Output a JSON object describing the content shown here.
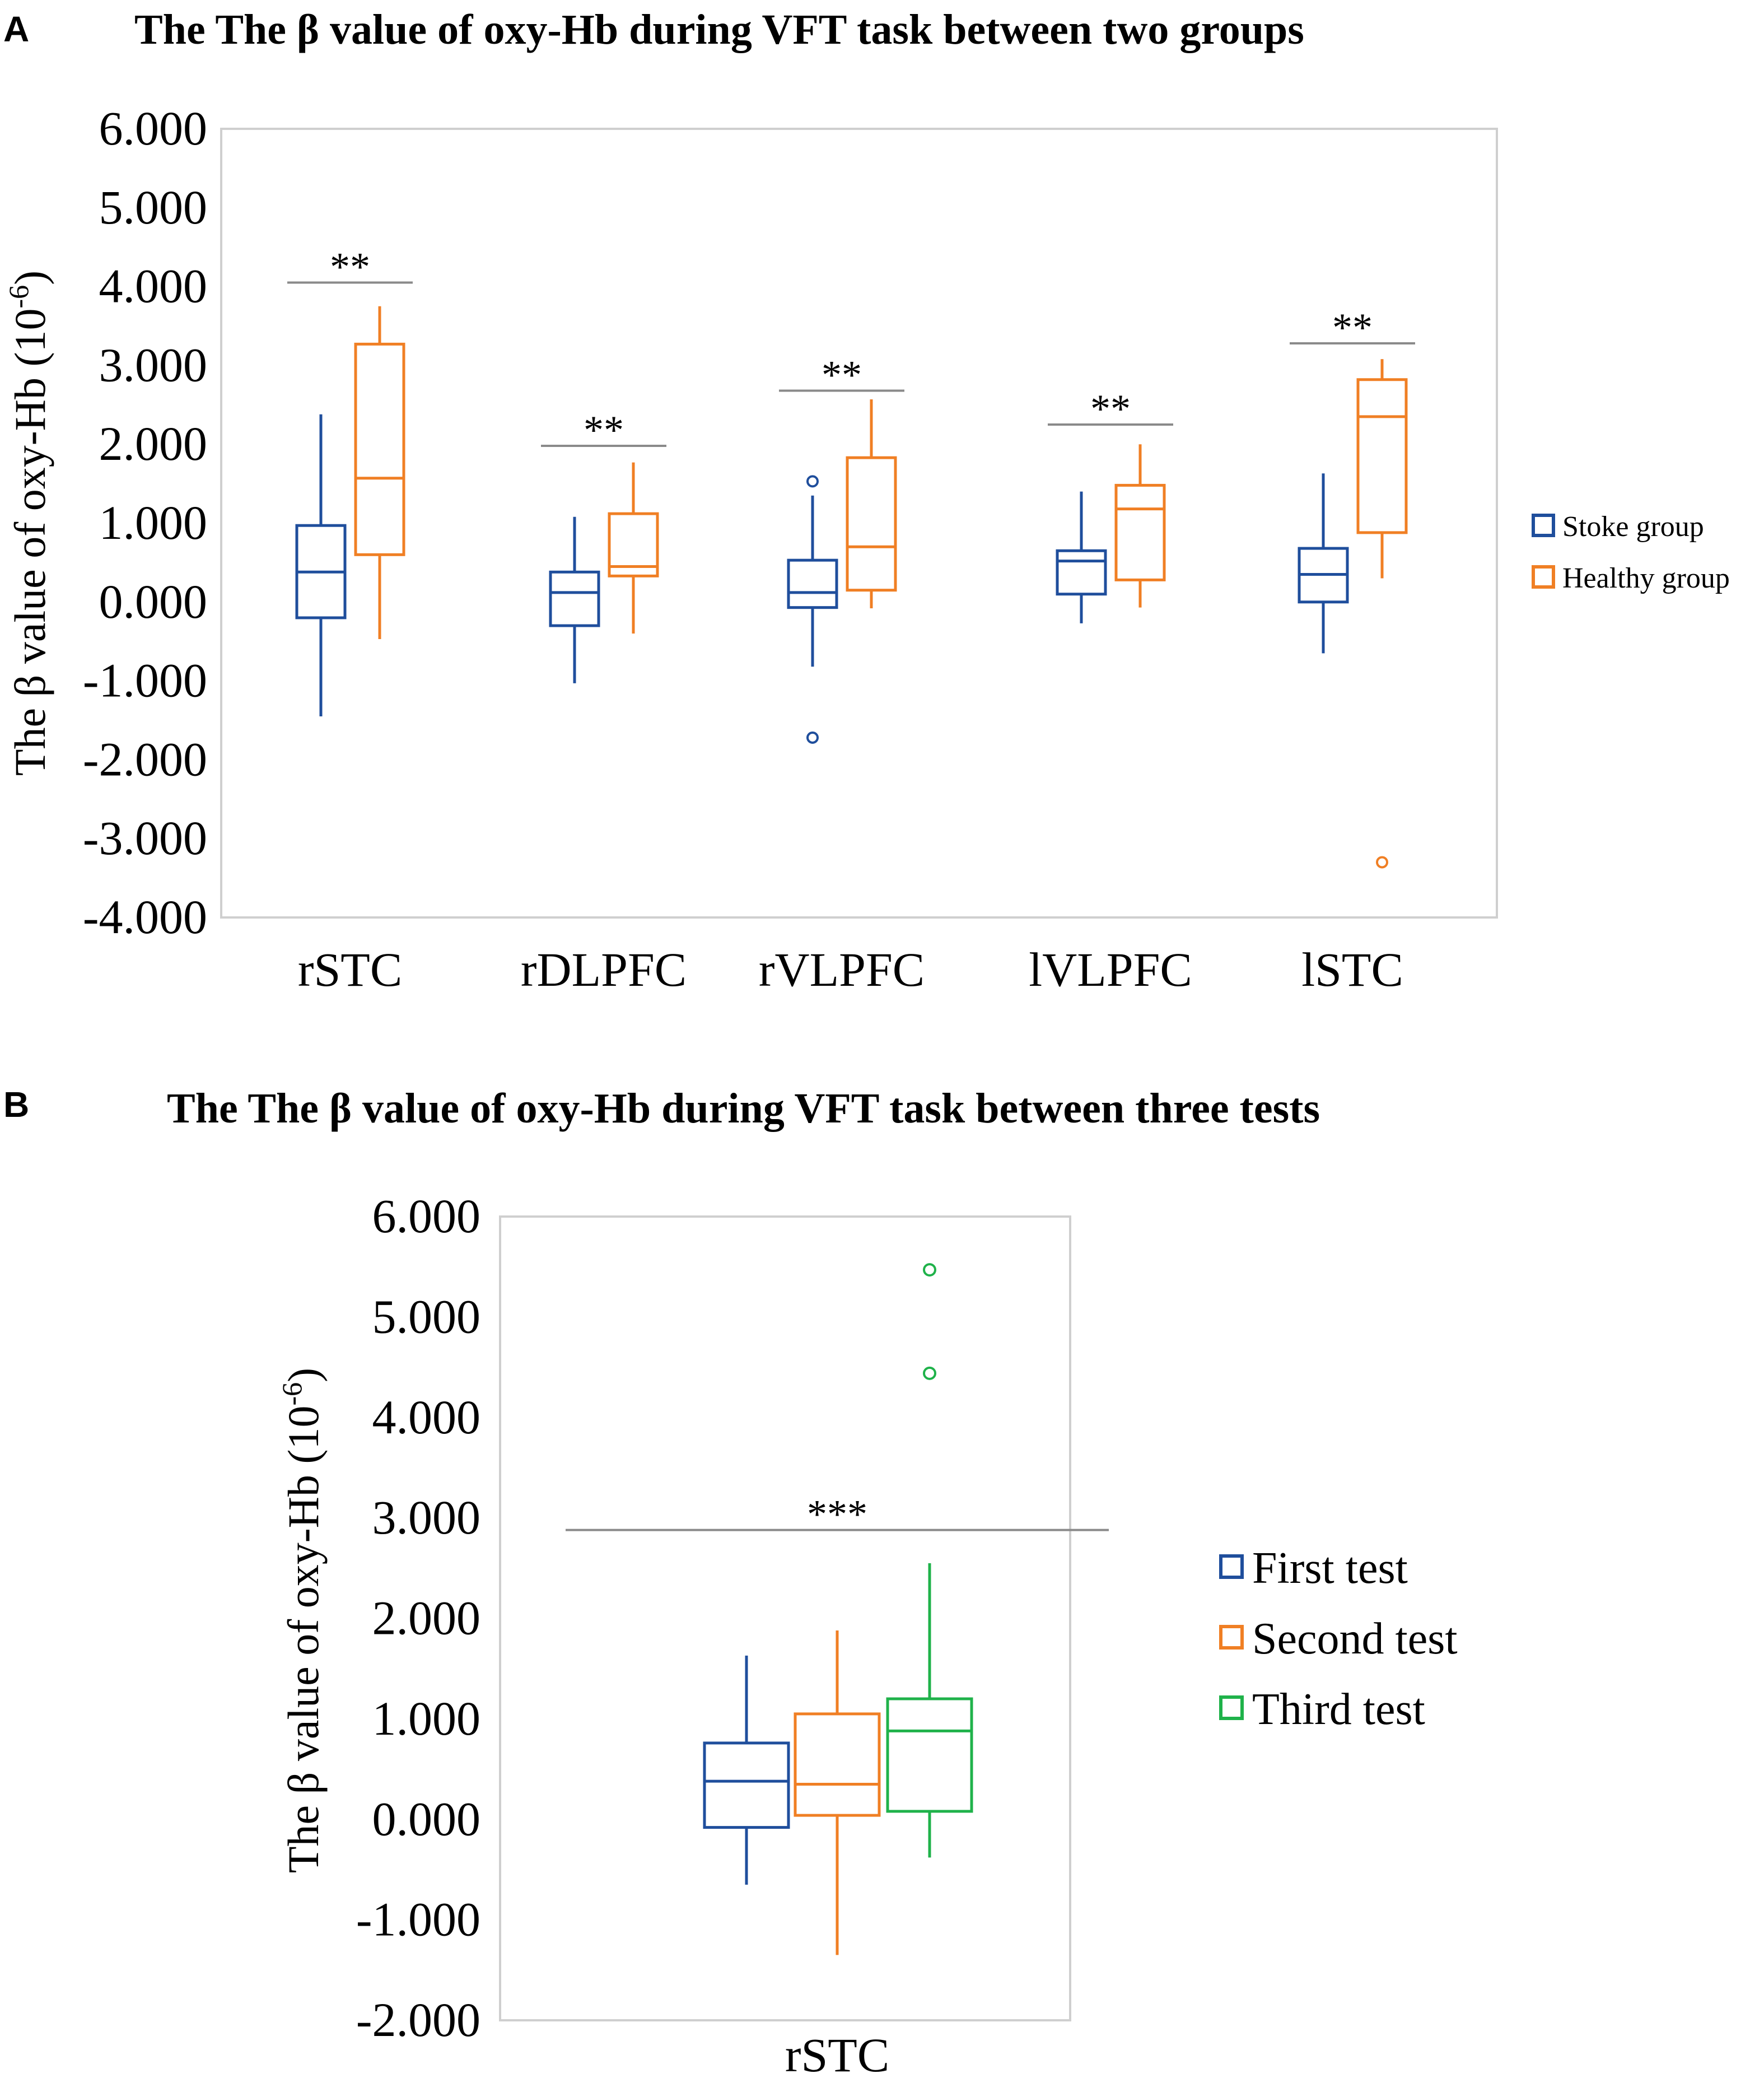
{
  "colors": {
    "stroke": "#1f4e9c",
    "healthy": "#f07f24",
    "first": "#1f4e9c",
    "second": "#f07f24",
    "third": "#1fb24a",
    "bracket": "#8a8a8a"
  },
  "chart_data": [
    {
      "id": "A",
      "panel_label": "A",
      "type": "boxplot",
      "title": "The The  β value of oxy-Hb during VFT task  between two groups",
      "ylabel_prefix": "The  β value of oxy-Hb (10",
      "ylabel_exp": "-6",
      "ylabel_suffix": ")",
      "ylim": [
        -4,
        6
      ],
      "yticks": [
        6,
        5,
        4,
        3,
        2,
        1,
        0,
        -1,
        -2,
        -3,
        -4
      ],
      "ytick_labels": [
        "6.000",
        "5.000",
        "4.000",
        "3.000",
        "2.000",
        "1.000",
        "0.000",
        "-1.000",
        "-2.000",
        "-3.000",
        "-4.000"
      ],
      "categories": [
        "rSTC",
        "rDLPFC",
        "rVLPFC",
        "lVLPFC",
        "lSTC"
      ],
      "series": [
        {
          "name": "Stoke group",
          "color": "#1f4e9c",
          "boxes": [
            {
              "min": -1.45,
              "q1": -0.2,
              "median": 0.38,
              "q3": 0.97,
              "max": 2.38,
              "outliers": []
            },
            {
              "min": -1.03,
              "q1": -0.3,
              "median": 0.12,
              "q3": 0.38,
              "max": 1.08,
              "outliers": []
            },
            {
              "min": -0.82,
              "q1": -0.07,
              "median": 0.12,
              "q3": 0.53,
              "max": 1.35,
              "outliers": [
                1.53,
                -1.72
              ]
            },
            {
              "min": -0.27,
              "q1": 0.1,
              "median": 0.52,
              "q3": 0.65,
              "max": 1.4,
              "outliers": []
            },
            {
              "min": -0.65,
              "q1": 0.0,
              "median": 0.35,
              "q3": 0.68,
              "max": 1.63,
              "outliers": []
            }
          ]
        },
        {
          "name": "Healthy group",
          "color": "#f07f24",
          "boxes": [
            {
              "min": -0.47,
              "q1": 0.6,
              "median": 1.57,
              "q3": 3.27,
              "max": 3.75,
              "outliers": []
            },
            {
              "min": -0.4,
              "q1": 0.33,
              "median": 0.45,
              "q3": 1.12,
              "max": 1.77,
              "outliers": []
            },
            {
              "min": -0.08,
              "q1": 0.15,
              "median": 0.7,
              "q3": 1.83,
              "max": 2.57,
              "outliers": []
            },
            {
              "min": -0.07,
              "q1": 0.28,
              "median": 1.18,
              "q3": 1.48,
              "max": 2.0,
              "outliers": []
            },
            {
              "min": 0.3,
              "q1": 0.88,
              "median": 2.35,
              "q3": 2.82,
              "max": 3.08,
              "outliers": [
                -3.3
              ]
            }
          ]
        }
      ],
      "significance": [
        {
          "category": "rSTC",
          "y": 4.05,
          "label": "**"
        },
        {
          "category": "rDLPFC",
          "y": 1.98,
          "label": "**"
        },
        {
          "category": "rVLPFC",
          "y": 2.68,
          "label": "**"
        },
        {
          "category": "lVLPFC",
          "y": 2.25,
          "label": "**"
        },
        {
          "category": "lSTC",
          "y": 3.28,
          "label": "**"
        }
      ]
    },
    {
      "id": "B",
      "panel_label": "B",
      "type": "boxplot",
      "title": "The The  β value of oxy-Hb during VFT task between three tests",
      "ylabel_prefix": "The  β value of oxy-Hb (10",
      "ylabel_exp": "-6",
      "ylabel_suffix": ")",
      "ylim": [
        -2,
        6
      ],
      "yticks": [
        6,
        5,
        4,
        3,
        2,
        1,
        0,
        -1,
        -2
      ],
      "ytick_labels": [
        "6.000",
        "5.000",
        "4.000",
        "3.000",
        "2.000",
        "1.000",
        "0.000",
        "-1.000",
        "-2.000"
      ],
      "categories": [
        "rSTC"
      ],
      "series": [
        {
          "name": "First test",
          "color": "#1f4e9c",
          "boxes": [
            {
              "min": -0.65,
              "q1": -0.08,
              "median": 0.38,
              "q3": 0.76,
              "max": 1.63,
              "outliers": []
            }
          ]
        },
        {
          "name": "Second test",
          "color": "#f07f24",
          "boxes": [
            {
              "min": -1.35,
              "q1": 0.04,
              "median": 0.35,
              "q3": 1.05,
              "max": 1.88,
              "outliers": []
            }
          ]
        },
        {
          "name": "Third test",
          "color": "#1fb24a",
          "boxes": [
            {
              "min": -0.38,
              "q1": 0.08,
              "median": 0.88,
              "q3": 1.2,
              "max": 2.55,
              "outliers": [
                5.47,
                4.44
              ]
            }
          ]
        }
      ],
      "significance": [
        {
          "category": "rSTC",
          "y": 2.88,
          "label": "***"
        }
      ]
    }
  ]
}
